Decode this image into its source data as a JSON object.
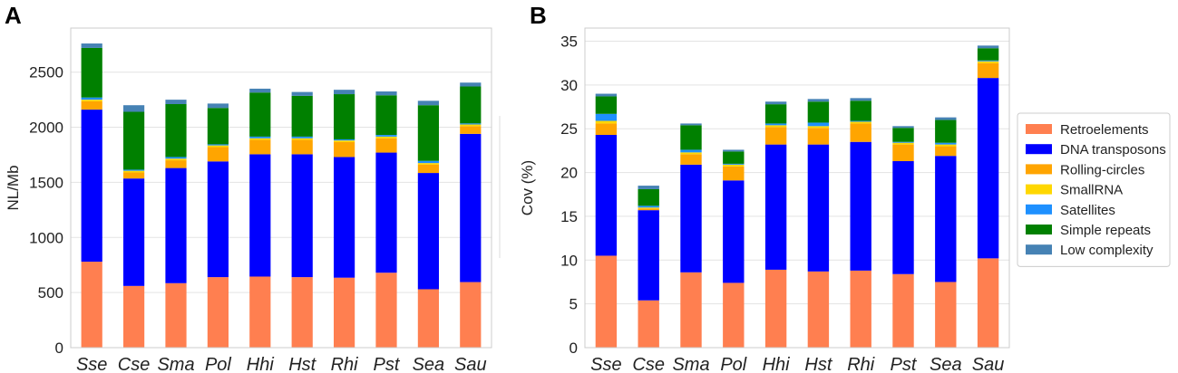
{
  "colors": {
    "Retroelements": "#ff7f50",
    "DNA transposons": "#0000ff",
    "Rolling-circles": "#ffa500",
    "SmallRNA": "#ffd700",
    "Satellites": "#1e90ff",
    "Simple repeats": "#008000",
    "Low complexity": "#4682b4"
  },
  "chart_data": [
    {
      "type": "bar",
      "stacked": true,
      "panel_label": "A",
      "title": "",
      "xlabel": "",
      "ylabel": "NL/Mb",
      "ylim": [
        0,
        2900
      ],
      "yticks": [
        0,
        500,
        1000,
        1500,
        2000,
        2500
      ],
      "ytick_labels": [
        "0",
        "500",
        "1000",
        "1500",
        "2000",
        "2500"
      ],
      "grid": true,
      "categories": [
        "Sse",
        "Cse",
        "Sma",
        "Pol",
        "Hhi",
        "Hst",
        "Rhi",
        "Pst",
        "Sea",
        "Sau"
      ],
      "series": [
        {
          "name": "Retroelements",
          "values": [
            780,
            560,
            585,
            640,
            645,
            640,
            635,
            680,
            530,
            595
          ]
        },
        {
          "name": "DNA transposons",
          "values": [
            1380,
            975,
            1045,
            1050,
            1110,
            1115,
            1095,
            1090,
            1055,
            1345
          ]
        },
        {
          "name": "Rolling-circles",
          "values": [
            75,
            55,
            70,
            130,
            130,
            130,
            135,
            130,
            75,
            70
          ]
        },
        {
          "name": "SmallRNA",
          "values": [
            15,
            15,
            15,
            15,
            15,
            15,
            15,
            15,
            15,
            15
          ]
        },
        {
          "name": "Satellites",
          "values": [
            20,
            10,
            15,
            10,
            15,
            15,
            10,
            15,
            20,
            10
          ]
        },
        {
          "name": "Simple repeats",
          "values": [
            450,
            525,
            480,
            330,
            400,
            370,
            410,
            360,
            505,
            335
          ]
        },
        {
          "name": "Low complexity",
          "values": [
            40,
            60,
            40,
            40,
            35,
            35,
            40,
            35,
            40,
            35
          ]
        }
      ]
    },
    {
      "type": "bar",
      "stacked": true,
      "panel_label": "B",
      "title": "",
      "xlabel": "",
      "ylabel": "Cov (%)",
      "ylim": [
        0,
        36.5
      ],
      "yticks": [
        0,
        5,
        10,
        15,
        20,
        25,
        30,
        35
      ],
      "ytick_labels": [
        "0",
        "5",
        "10",
        "15",
        "20",
        "25",
        "30",
        "35"
      ],
      "grid": true,
      "categories": [
        "Sse",
        "Cse",
        "Sma",
        "Pol",
        "Hhi",
        "Hst",
        "Rhi",
        "Pst",
        "Sea",
        "Sau"
      ],
      "legend_position": "right",
      "series": [
        {
          "name": "Retroelements",
          "values": [
            10.5,
            5.4,
            8.6,
            7.4,
            8.9,
            8.7,
            8.8,
            8.4,
            7.5,
            10.2
          ]
        },
        {
          "name": "DNA transposons",
          "values": [
            13.8,
            10.3,
            12.3,
            11.7,
            14.3,
            14.5,
            14.7,
            12.9,
            14.4,
            20.6
          ]
        },
        {
          "name": "Rolling-circles",
          "values": [
            1.3,
            0.2,
            1.2,
            1.6,
            2.0,
            1.9,
            2.1,
            1.9,
            1.1,
            1.7
          ]
        },
        {
          "name": "SmallRNA",
          "values": [
            0.3,
            0.1,
            0.2,
            0.2,
            0.2,
            0.2,
            0.2,
            0.2,
            0.2,
            0.2
          ]
        },
        {
          "name": "Satellites",
          "values": [
            0.8,
            0.2,
            0.3,
            0.1,
            0.2,
            0.4,
            0.1,
            0.1,
            0.2,
            0.1
          ]
        },
        {
          "name": "Simple repeats",
          "values": [
            2.0,
            1.9,
            2.8,
            1.4,
            2.2,
            2.4,
            2.3,
            1.6,
            2.6,
            1.4
          ]
        },
        {
          "name": "Low complexity",
          "values": [
            0.3,
            0.4,
            0.2,
            0.2,
            0.3,
            0.3,
            0.3,
            0.2,
            0.3,
            0.3
          ]
        }
      ]
    }
  ]
}
